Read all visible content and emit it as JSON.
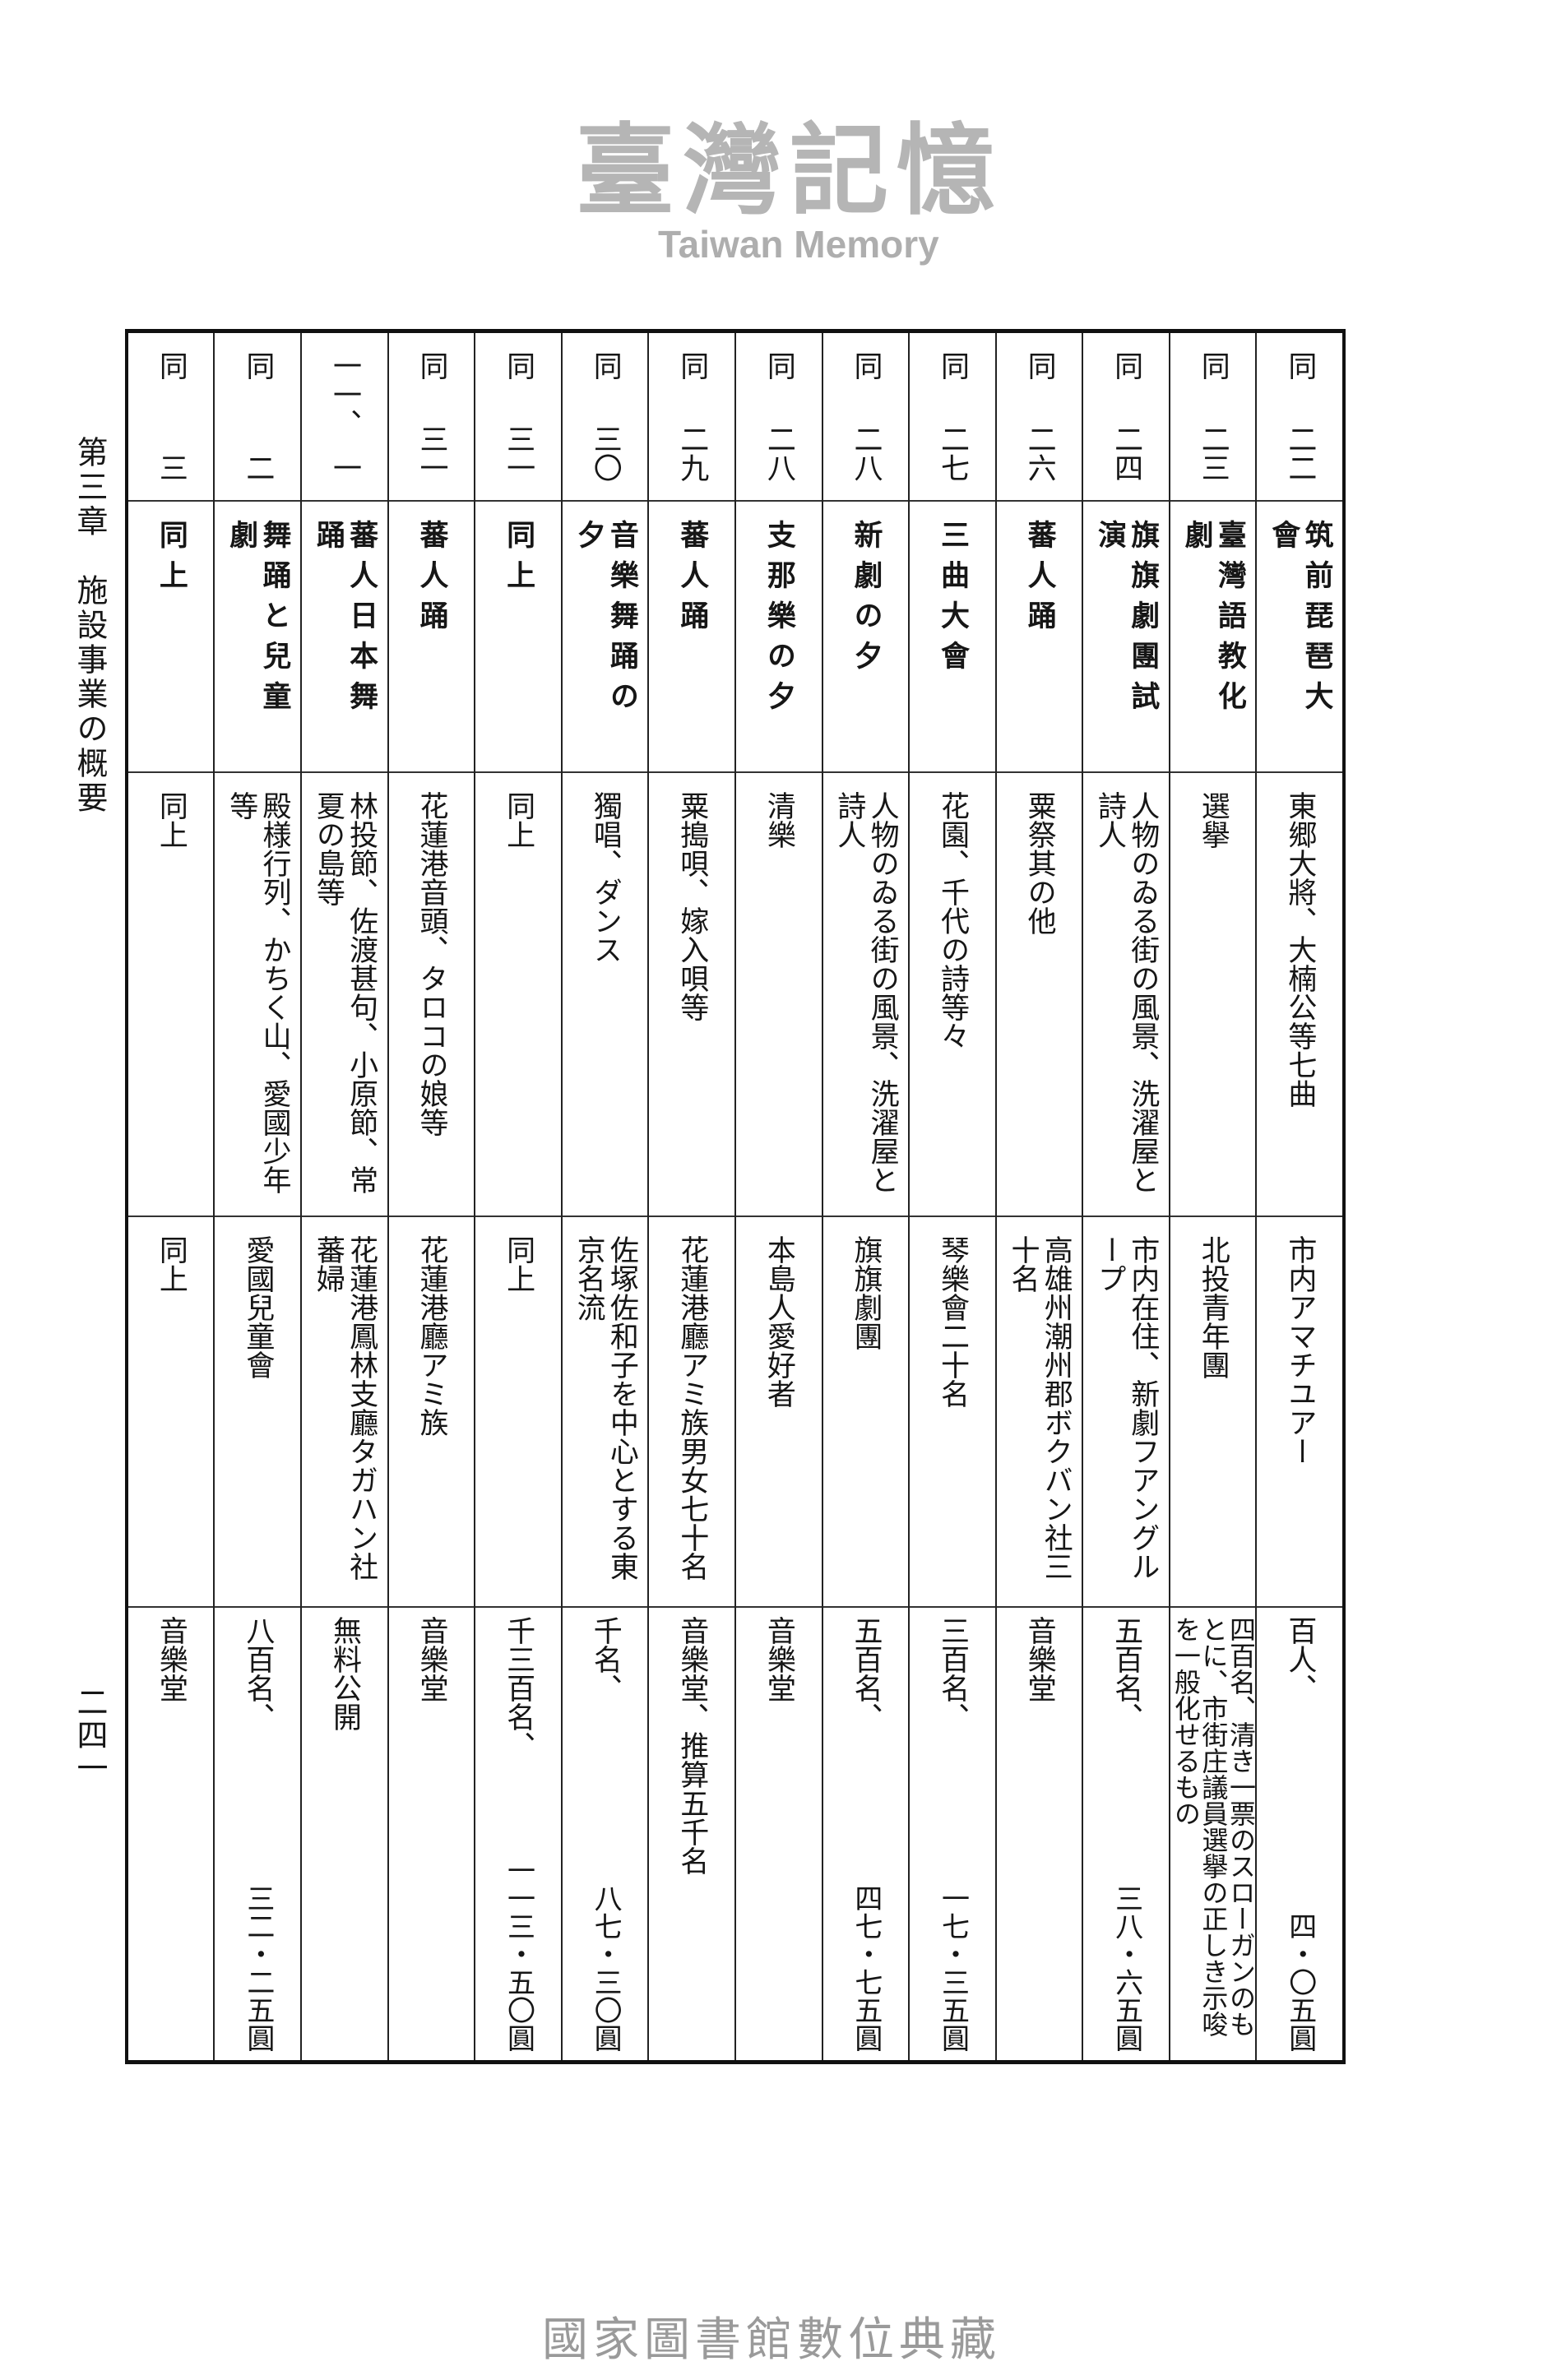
{
  "header": {
    "chapter": "第三章　施設事業の概要",
    "page_number": "二四一"
  },
  "columns": [
    {
      "date_prefix": "同",
      "date": "二二",
      "title": "筑前琵琶大會",
      "program": "東郷大將、大楠公等七曲",
      "performers": "市内アマチユアー",
      "audience": "百人、",
      "fee": "四・〇五圓"
    },
    {
      "date_prefix": "同",
      "date": "二三",
      "title": "臺灣語教化劇",
      "program": "選擧",
      "performers": "北投青年團",
      "audience": "四百名、清き一票のスローガンのもとに、市街庄議員選擧の正しき示唆を一般化せるもの",
      "fee": ""
    },
    {
      "date_prefix": "同",
      "date": "二四",
      "title": "旗旗劇團試演",
      "program": "人物のゐる街の風景、洗濯屋と詩人",
      "performers": "市内在住、新劇フアングループ",
      "audience": "五百名、",
      "fee": "三八・六五圓"
    },
    {
      "date_prefix": "同",
      "date": "二六",
      "title": "蕃人踊",
      "program": "粟祭其の他",
      "performers": "高雄州潮州郡ボクバン社三十名",
      "audience": "音樂堂",
      "fee": ""
    },
    {
      "date_prefix": "同",
      "date": "二七",
      "title": "三曲大會",
      "program": "花園、千代の詩等々",
      "performers": "琴樂會二十名",
      "audience": "三百名、",
      "fee": "一七・三五圓"
    },
    {
      "date_prefix": "同",
      "date": "二八",
      "title": "新劇の夕",
      "program": "人物のゐる街の風景、洗濯屋と詩人",
      "performers": "旗旗劇團",
      "audience": "五百名、",
      "fee": "四七・七五圓"
    },
    {
      "date_prefix": "同",
      "date": "二八",
      "title": "支那樂の夕",
      "program": "清樂",
      "performers": "本島人愛好者",
      "audience": "音樂堂",
      "fee": ""
    },
    {
      "date_prefix": "同",
      "date": "二九",
      "title": "蕃人踊",
      "program": "粟搗唄、嫁入唄等",
      "performers": "花蓮港廳アミ族男女七十名",
      "audience": "音樂堂、推算五千名",
      "fee": ""
    },
    {
      "date_prefix": "同",
      "date": "三〇",
      "title": "音樂舞踊の夕",
      "program": "獨唱、ダンス",
      "performers": "佐塚佐和子を中心とする東京名流",
      "audience": "千名、",
      "fee": "八七・三〇圓"
    },
    {
      "date_prefix": "同",
      "date": "三一",
      "title": "同上",
      "program": "同上",
      "performers": "同上",
      "audience": "千三百名、",
      "fee": "一一三・五〇圓"
    },
    {
      "date_prefix": "同",
      "date": "三一",
      "title": "蕃人踊",
      "program": "花蓮港音頭、タロコの娘等",
      "performers": "花蓮港廳アミ族",
      "audience": "音樂堂",
      "fee": ""
    },
    {
      "date_prefix": "一一、",
      "date": "一",
      "title": "蕃人日本舞踊",
      "program": "林投節、佐渡甚句、小原節、常夏の島等",
      "performers": "花蓮港鳳林支廳タガハン社蕃婦",
      "audience": "無料公開",
      "fee": ""
    },
    {
      "date_prefix": "同",
      "date": "二",
      "title": "舞踊と兒童劇",
      "program": "殿様行列、かちく山、愛國少年等",
      "performers": "愛國兒童會",
      "audience": "八百名、",
      "fee": "三二・二五圓"
    },
    {
      "date_prefix": "同",
      "date": "三",
      "title": "同上",
      "program": "同上",
      "performers": "同上",
      "audience": "音樂堂",
      "fee": ""
    }
  ],
  "watermark": {
    "main": "臺灣記憶",
    "sub": "Taiwan Memory"
  },
  "footer": {
    "text": "國家圖書館數位典藏"
  }
}
